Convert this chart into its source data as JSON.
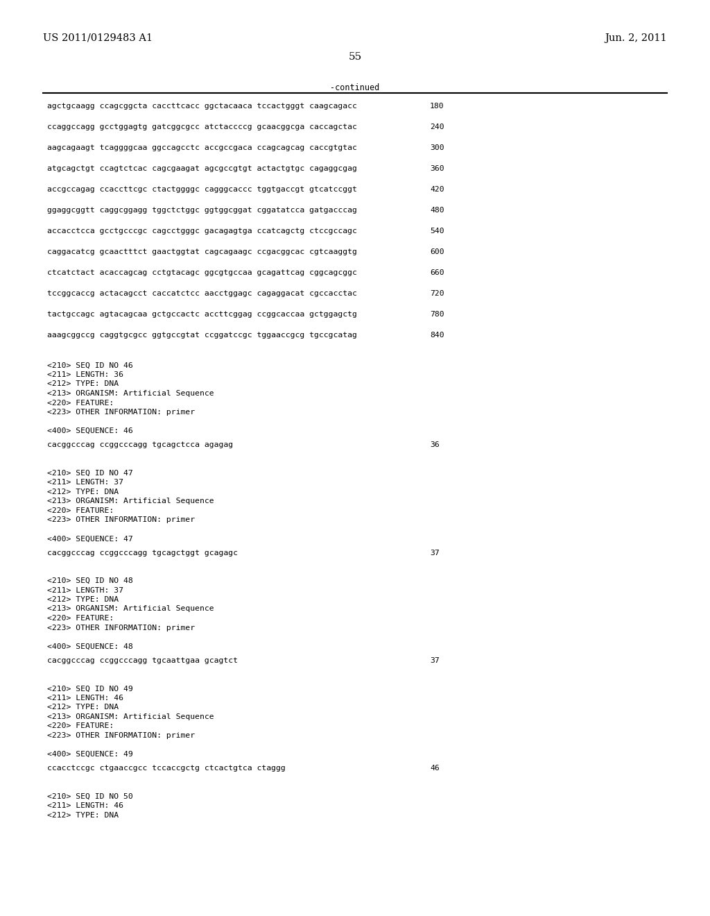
{
  "header_left": "US 2011/0129483 A1",
  "header_right": "Jun. 2, 2011",
  "page_number": "55",
  "continued_label": "-continued",
  "background_color": "#ffffff",
  "text_color": "#000000",
  "sequence_lines": [
    [
      "agctgcaagg ccagcggcta caccttcacc ggctacaaca tccactgggt caagcagacc",
      "180"
    ],
    [
      "ccaggccagg gcctggagtg gatcggcgcc atctaccccg gcaacggcga caccagctac",
      "240"
    ],
    [
      "aagcagaagt tcaggggcaa ggccagcctc accgccgaca ccagcagcag caccgtgtac",
      "300"
    ],
    [
      "atgcagctgt ccagtctcac cagcgaagat agcgccgtgt actactgtgc cagaggcgag",
      "360"
    ],
    [
      "accgccagag ccaccttcgc ctactggggc cagggcaccc tggtgaccgt gtcatccggt",
      "420"
    ],
    [
      "ggaggcggtt caggcggagg tggctctggc ggtggcggat cggatatcca gatgacccag",
      "480"
    ],
    [
      "accacctcca gcctgcccgc cagcctgggc gacagagtga ccatcagctg ctccgccagc",
      "540"
    ],
    [
      "caggacatcg gcaactttct gaactggtat cagcagaagc ccgacggcac cgtcaaggtg",
      "600"
    ],
    [
      "ctcatctact acaccagcag cctgtacagc ggcgtgccaa gcagattcag cggcagcggc",
      "660"
    ],
    [
      "tccggcaccg actacagcct caccatctcc aacctggagc cagaggacat cgccacctac",
      "720"
    ],
    [
      "tactgccagc agtacagcaa gctgccactc accttcggag ccggcaccaa gctggagctg",
      "780"
    ],
    [
      "aaagcggccg caggtgcgcc ggtgccgtat ccggatccgc tggaaccgcg tgccgcatag",
      "840"
    ]
  ],
  "seq_entries": [
    {
      "header_lines": [
        "<210> SEQ ID NO 46",
        "<211> LENGTH: 36",
        "<212> TYPE: DNA",
        "<213> ORGANISM: Artificial Sequence",
        "<220> FEATURE:",
        "<223> OTHER INFORMATION: primer"
      ],
      "sequence_label": "<400> SEQUENCE: 46",
      "sequence_data": "cacggcccag ccggcccagg tgcagctcca agagag",
      "sequence_number": "36"
    },
    {
      "header_lines": [
        "<210> SEQ ID NO 47",
        "<211> LENGTH: 37",
        "<212> TYPE: DNA",
        "<213> ORGANISM: Artificial Sequence",
        "<220> FEATURE:",
        "<223> OTHER INFORMATION: primer"
      ],
      "sequence_label": "<400> SEQUENCE: 47",
      "sequence_data": "cacggcccag ccggcccagg tgcagctggt gcagagc",
      "sequence_number": "37"
    },
    {
      "header_lines": [
        "<210> SEQ ID NO 48",
        "<211> LENGTH: 37",
        "<212> TYPE: DNA",
        "<213> ORGANISM: Artificial Sequence",
        "<220> FEATURE:",
        "<223> OTHER INFORMATION: primer"
      ],
      "sequence_label": "<400> SEQUENCE: 48",
      "sequence_data": "cacggcccag ccggcccagg tgcaattgaa gcagtct",
      "sequence_number": "37"
    },
    {
      "header_lines": [
        "<210> SEQ ID NO 49",
        "<211> LENGTH: 46",
        "<212> TYPE: DNA",
        "<213> ORGANISM: Artificial Sequence",
        "<220> FEATURE:",
        "<223> OTHER INFORMATION: primer"
      ],
      "sequence_label": "<400> SEQUENCE: 49",
      "sequence_data": "ccacctccgc ctgaaccgcc tccaccgctg ctcactgtca ctaggg",
      "sequence_number": "46"
    },
    {
      "header_lines": [
        "<210> SEQ ID NO 50",
        "<211> LENGTH: 46",
        "<212> TYPE: DNA"
      ],
      "sequence_label": "",
      "sequence_data": "",
      "sequence_number": ""
    }
  ]
}
